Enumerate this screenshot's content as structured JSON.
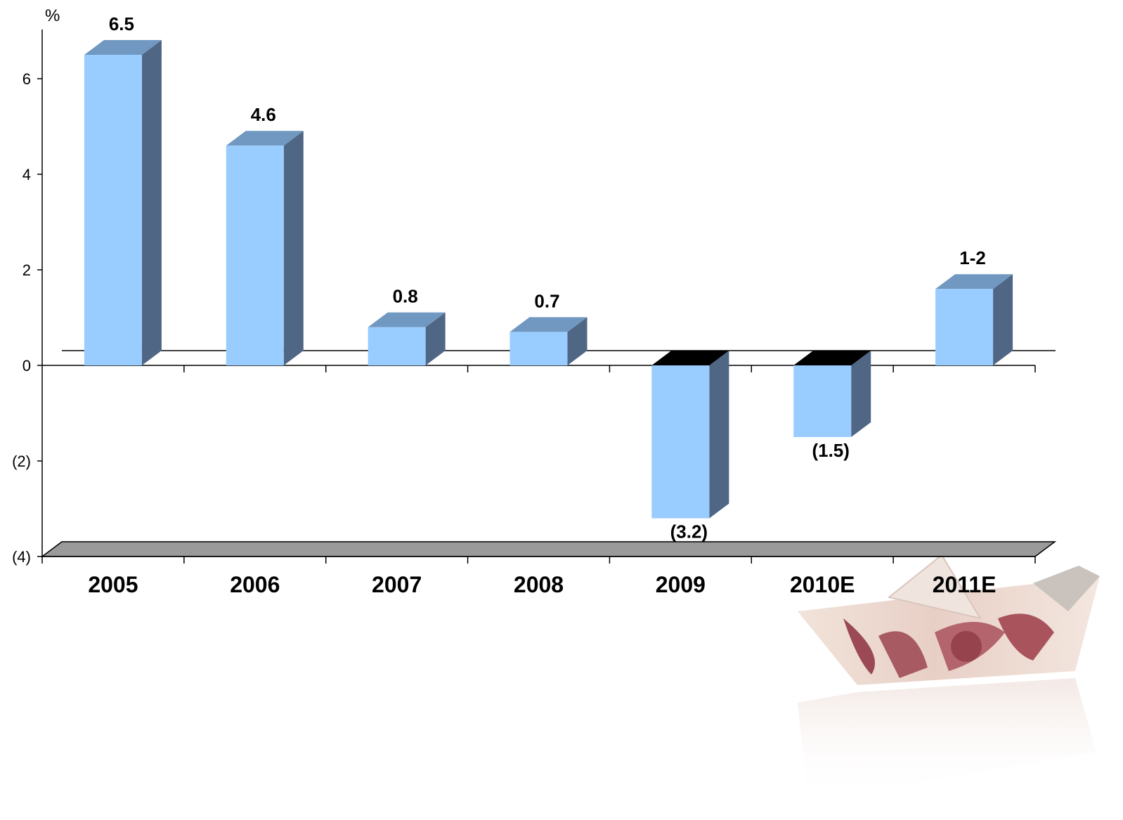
{
  "chart_data": {
    "type": "bar",
    "unit": "%",
    "categories": [
      "2005",
      "2006",
      "2007",
      "2008",
      "2009",
      "2010E",
      "2011E"
    ],
    "values": [
      6.5,
      4.6,
      0.8,
      0.7,
      -3.2,
      -1.5,
      1.6
    ],
    "data_labels": [
      "6.5",
      "4.6",
      "0.8",
      "0.7",
      "(3.2)",
      "(1.5)",
      "1-2"
    ],
    "y_ticks": [
      6,
      4,
      2,
      0,
      -2,
      -4
    ],
    "y_tick_labels": [
      "6",
      "4",
      "2",
      "0",
      "(2)",
      "(4)"
    ],
    "ylim": [
      -4,
      7
    ],
    "grid": false,
    "legend": "none",
    "style": "3d",
    "colors": {
      "bar_front": "#99CCFF",
      "bar_side": "#4F6684",
      "bar_top_positive": "#7098C0",
      "bar_top_negative": "#000000",
      "floor": "#9A9A9A"
    }
  },
  "decoration": {
    "image": "paper-boat-made-of-banknote"
  }
}
